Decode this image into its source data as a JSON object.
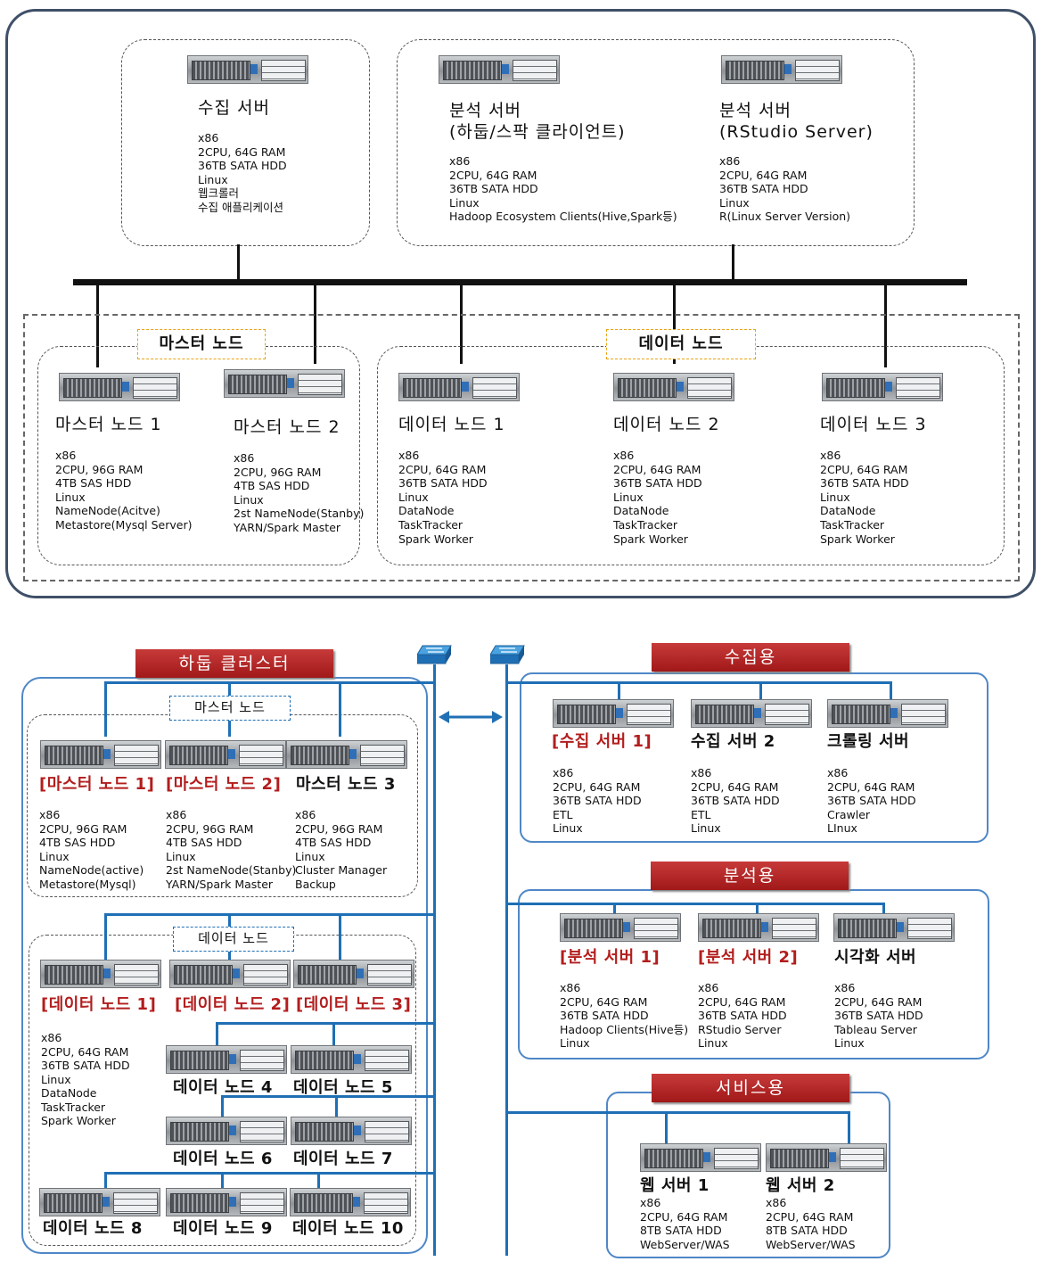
{
  "top": {
    "collect_server": {
      "title": "수집 서버",
      "specs": "x86\n2CPU, 64G RAM\n36TB SATA HDD\nLinux\n웹크롤러\n수집 애플리케이션"
    },
    "analysis_server_1": {
      "title": "분석 서버\n(하둡/스팍 클라이언트)",
      "specs": "x86\n2CPU, 64G RAM\n36TB SATA HDD\nLinux\nHadoop Ecosystem Clients(Hive,Spark등)"
    },
    "analysis_server_2": {
      "title": "분석 서버\n(RStudio Server)",
      "specs": "x86\n2CPU, 64G RAM\n36TB SATA HDD\nLinux\nR(Linux Server Version)"
    },
    "master_group_label": "마스터 노드",
    "data_group_label": "데이터 노드",
    "master_node_1": {
      "title": "마스터 노드 1",
      "specs": "x86\n2CPU, 96G RAM\n4TB SAS HDD\nLinux\nNameNode(Acitve)\nMetastore(Mysql Server)"
    },
    "master_node_2": {
      "title": "마스터 노드 2",
      "specs": "x86\n2CPU, 96G RAM\n4TB SAS HDD\nLinux\n2st NameNode(Stanby)\nYARN/Spark Master"
    },
    "data_node_1": {
      "title": "데이터 노드 1",
      "specs": "x86\n2CPU, 64G RAM\n36TB SATA HDD\nLinux\nDataNode\nTaskTracker\nSpark Worker"
    },
    "data_node_2": {
      "title": "데이터 노드 2",
      "specs": "x86\n2CPU, 64G RAM\n36TB SATA HDD\nLinux\nDataNode\nTaskTracker\nSpark Worker"
    },
    "data_node_3": {
      "title": "데이터 노드 3",
      "specs": "x86\n2CPU, 64G RAM\n36TB SATA HDD\nLinux\nDataNode\nTaskTracker\nSpark Worker"
    }
  },
  "bottom": {
    "hadoop_banner": "하둡 클러스터",
    "master_label": "마스터 노드",
    "data_label": "데이터 노드",
    "masters": [
      {
        "title": "[마스터 노드 1]",
        "specs": "x86\n2CPU, 96G RAM\n4TB SAS HDD\nLinux\nNameNode(active)\nMetastore(Mysql)"
      },
      {
        "title": "[마스터 노드 2]",
        "specs": "x86\n2CPU, 96G RAM\n4TB SAS HDD\nLinux\n2st NameNode(Stanby)\nYARN/Spark Master"
      },
      {
        "title": "마스터 노드 3",
        "specs": "x86\n2CPU, 96G RAM\n4TB SAS HDD\nLinux\nCluster Manager\nBackup"
      }
    ],
    "data_nodes": {
      "dn1": "[데이터 노드 1]",
      "dn2": "[데이터 노드 2]",
      "dn3": "[데이터 노드 3]",
      "dn4": "데이터 노드 4",
      "dn5": "데이터 노드 5",
      "dn6": "데이터 노드 6",
      "dn7": "데이터 노드 7",
      "dn8": "데이터 노드 8",
      "dn9": "데이터 노드 9",
      "dn10": "데이터 노드 10",
      "specs": "x86\n2CPU, 64G RAM\n36TB SATA HDD\nLinux\nDataNode\nTaskTracker\nSpark Worker"
    },
    "collect_banner": "수집용",
    "collect": [
      {
        "title": "[수집 서버 1]",
        "specs": "x86\n2CPU, 64G RAM\n36TB SATA HDD\nETL\nLinux"
      },
      {
        "title": "수집 서버 2",
        "specs": "x86\n2CPU, 64G RAM\n36TB SATA HDD\nETL\nLinux"
      },
      {
        "title": "크롤링 서버",
        "specs": "x86\n2CPU, 64G RAM\n36TB SATA HDD\nCrawler\nLInux"
      }
    ],
    "analysis_banner": "분석용",
    "analysis": [
      {
        "title": "[분석 서버 1]",
        "specs": "x86\n2CPU, 64G RAM\n36TB SATA HDD\nHadoop Clients(Hive등)\nLinux"
      },
      {
        "title": "[분석 서버 2]",
        "specs": "x86\n2CPU, 64G RAM\n36TB SATA HDD\nRStudio Server\nLinux"
      },
      {
        "title": "시각화 서버",
        "specs": "x86\n2CPU, 64G RAM\n36TB SATA HDD\nTableau Server\nLinux"
      }
    ],
    "service_banner": "서비스용",
    "service": [
      {
        "title": "웹 서버 1",
        "specs": "x86\n2CPU, 64G RAM\n8TB SATA HDD\nWebServer/WAS"
      },
      {
        "title": "웹 서버 2",
        "specs": "x86\n2CPU, 64G RAM\n8TB SATA HDD\nWebServer/WAS"
      }
    ]
  },
  "colors": {
    "frame": "#3f5068",
    "network": "#1f6fb5",
    "banner": "#b31d1d",
    "highlight_label": "#e8a317",
    "red_text": "#b31d1d"
  },
  "icons": [
    "rack-server-icon",
    "network-switch-icon",
    "bidirectional-arrow-icon"
  ]
}
